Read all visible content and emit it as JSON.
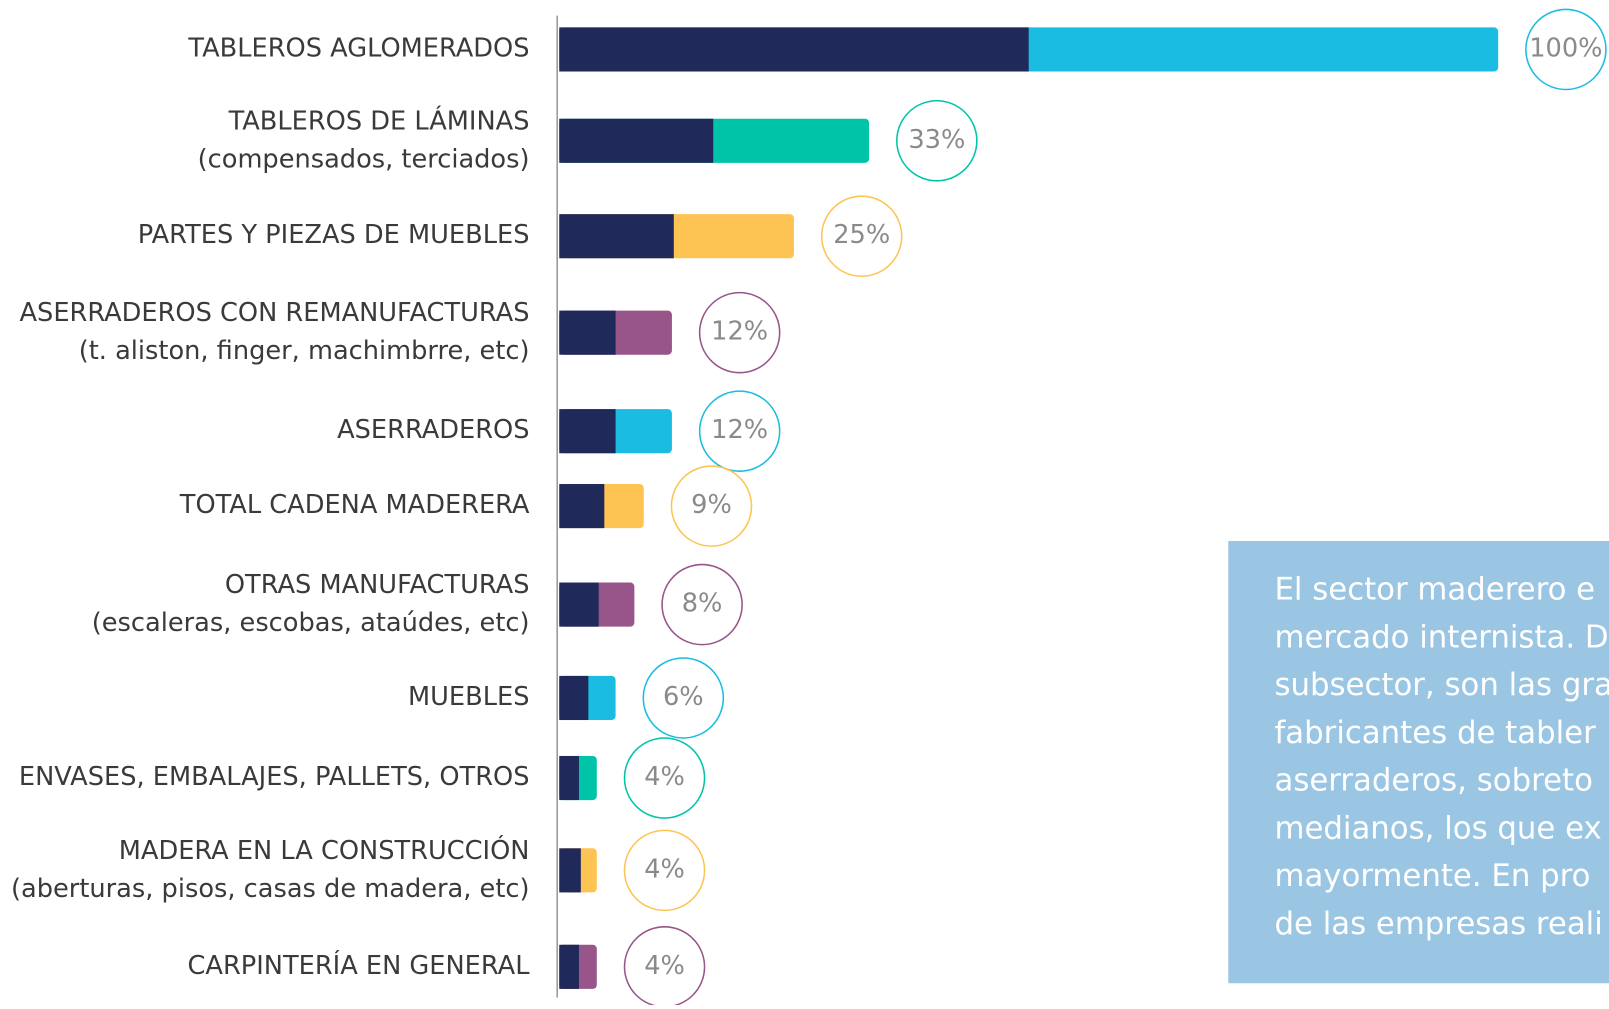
{
  "chart_data": {
    "type": "bar",
    "categories": [
      "TABLEROS AGLOMERADOS",
      "TABLEROS DE LÁMINAS",
      "PARTES Y PIEZAS DE MUEBLES",
      "ASERRADEROS CON REMANUFACTURAS",
      "ASERRADEROS",
      "TOTAL CADENA MADERERA",
      "OTRAS MANUFACTURAS",
      "MUEBLES",
      "ENVASES, EMBALAJES, PALLETS, OTROS",
      "MADERA EN LA CONSTRUCCIÓN",
      "CARPINTERÍA EN GENERAL"
    ],
    "category_notes": [
      null,
      "(compensados, terciados)",
      null,
      "(t. aliston, finger, machimbrre, etc)",
      null,
      null,
      "(escaleras, escobas, ataúdes, etc)",
      null,
      null,
      "(aberturas, pisos, casas de madera, etc)",
      null
    ],
    "values": [
      100,
      33,
      25,
      12,
      12,
      9,
      8,
      6,
      4,
      4,
      4
    ],
    "value_labels": [
      "100%",
      "33%",
      "25%",
      "12%",
      "12%",
      "9%",
      "8%",
      "6%",
      "4%",
      "4%",
      "4%"
    ],
    "colors": [
      "#1bbce2",
      "#00c4a7",
      "#fdc453",
      "#975589",
      "#1bbce2",
      "#fdc453",
      "#975589",
      "#1bbce2",
      "#00c4a7",
      "#fdc453",
      "#975589"
    ],
    "inner_values": [
      50,
      16.4,
      12.2,
      6,
      6,
      4.8,
      4.2,
      3.1,
      2.1,
      2.3,
      2.1
    ],
    "inner_color": "#1f2a5a",
    "xlim": [
      0,
      100
    ],
    "note_lines": [
      "El sector maderero e",
      "mercado internista. D",
      "subsector, son las gra",
      "fabricantes de tabler",
      "aserraderos, sobreto",
      "medianos, los que ex",
      "mayormente. En pro",
      "de las empresas reali"
    ]
  }
}
